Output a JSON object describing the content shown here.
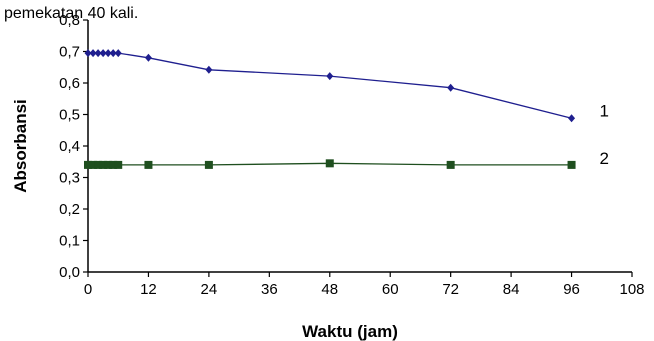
{
  "header_text": "pemekatan 40 kali.",
  "chart_data": {
    "type": "line",
    "xlabel": "Waktu (jam)",
    "ylabel": "Absorbansi",
    "xlim": [
      0,
      108
    ],
    "ylim": [
      0,
      0.8
    ],
    "x_ticks": [
      "0",
      "12",
      "24",
      "36",
      "48",
      "60",
      "72",
      "84",
      "96",
      "108"
    ],
    "y_ticks": [
      "0,0",
      "0,1",
      "0,2",
      "0,3",
      "0,4",
      "0,5",
      "0,6",
      "0,7",
      "0,8"
    ],
    "grid": false,
    "series": [
      {
        "name": "1",
        "color": "#1f1f8f",
        "marker": "diamond",
        "points": [
          [
            0,
            0.695
          ],
          [
            1,
            0.695
          ],
          [
            2,
            0.695
          ],
          [
            3,
            0.695
          ],
          [
            4,
            0.695
          ],
          [
            5,
            0.695
          ],
          [
            6,
            0.695
          ],
          [
            12,
            0.68
          ],
          [
            24,
            0.642
          ],
          [
            48,
            0.622
          ],
          [
            72,
            0.585
          ],
          [
            96,
            0.488
          ]
        ]
      },
      {
        "name": "2",
        "color": "#1f4f1f",
        "marker": "square",
        "points": [
          [
            0,
            0.34
          ],
          [
            1,
            0.34
          ],
          [
            2,
            0.34
          ],
          [
            3,
            0.34
          ],
          [
            4,
            0.34
          ],
          [
            5,
            0.34
          ],
          [
            6,
            0.34
          ],
          [
            12,
            0.34
          ],
          [
            24,
            0.34
          ],
          [
            48,
            0.345
          ],
          [
            72,
            0.34
          ],
          [
            96,
            0.34
          ]
        ]
      }
    ]
  }
}
